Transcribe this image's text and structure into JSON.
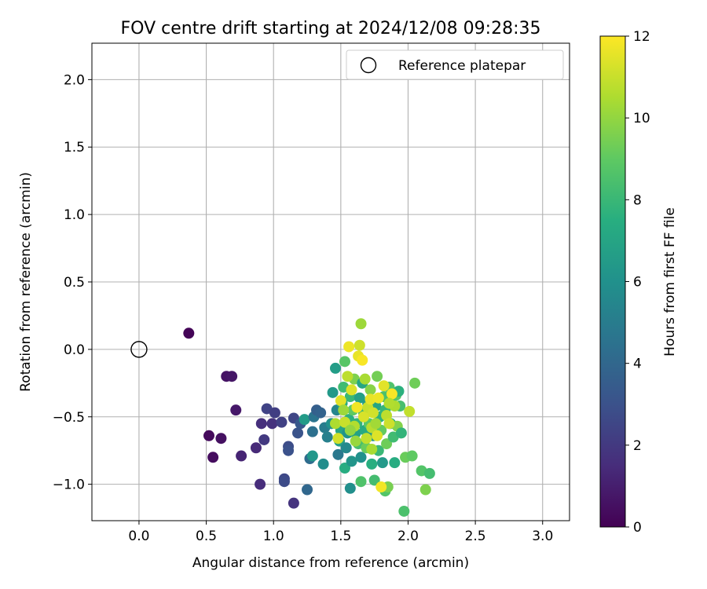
{
  "chart_data": {
    "type": "scatter",
    "title": "FOV centre drift starting at 2024/12/08 09:28:35",
    "xlabel": "Angular distance from reference (arcmin)",
    "ylabel": "Rotation from reference (arcmin)",
    "xlim": [
      -0.35,
      3.2
    ],
    "ylim": [
      -1.27,
      2.27
    ],
    "xticks": [
      0.0,
      0.5,
      1.0,
      1.5,
      2.0,
      2.5,
      3.0
    ],
    "xtick_labels": [
      "0.0",
      "0.5",
      "1.0",
      "1.5",
      "2.0",
      "2.5",
      "3.0"
    ],
    "yticks": [
      -1.0,
      -0.5,
      0.0,
      0.5,
      1.0,
      1.5,
      2.0
    ],
    "ytick_labels": [
      "−1.0",
      "−0.5",
      "0.0",
      "0.5",
      "1.0",
      "1.5",
      "2.0"
    ],
    "grid": true,
    "legend": {
      "position": "top-right",
      "entries": [
        "Reference platepar"
      ]
    },
    "reference_point": {
      "x": 0.0,
      "y": 0.0
    },
    "colorbar": {
      "label": "Hours from first FF file",
      "min": 0,
      "max": 12,
      "ticks": [
        0,
        2,
        4,
        6,
        8,
        10,
        12
      ],
      "tick_labels": [
        "0",
        "2",
        "4",
        "6",
        "8",
        "10",
        "12"
      ],
      "colormap": "viridis"
    },
    "points": [
      {
        "x": 0.37,
        "y": 0.12,
        "h": 0.1
      },
      {
        "x": 0.52,
        "y": -0.64,
        "h": 0.3
      },
      {
        "x": 0.55,
        "y": -0.8,
        "h": 0.4
      },
      {
        "x": 0.61,
        "y": -0.66,
        "h": 0.5
      },
      {
        "x": 0.65,
        "y": -0.2,
        "h": 0.6
      },
      {
        "x": 0.69,
        "y": -0.2,
        "h": 0.7
      },
      {
        "x": 0.72,
        "y": -0.45,
        "h": 0.8
      },
      {
        "x": 0.76,
        "y": -0.79,
        "h": 1.2
      },
      {
        "x": 0.87,
        "y": -0.73,
        "h": 1.4
      },
      {
        "x": 0.9,
        "y": -1.0,
        "h": 1.5
      },
      {
        "x": 0.91,
        "y": -0.55,
        "h": 1.6
      },
      {
        "x": 0.93,
        "y": -0.67,
        "h": 2.0
      },
      {
        "x": 0.95,
        "y": -0.44,
        "h": 2.4
      },
      {
        "x": 0.99,
        "y": -0.55,
        "h": 1.7
      },
      {
        "x": 1.01,
        "y": -0.47,
        "h": 2.2
      },
      {
        "x": 1.06,
        "y": -0.54,
        "h": 2.3
      },
      {
        "x": 1.08,
        "y": -0.96,
        "h": 2.6
      },
      {
        "x": 1.08,
        "y": -0.98,
        "h": 2.7
      },
      {
        "x": 1.11,
        "y": -0.72,
        "h": 2.8
      },
      {
        "x": 1.11,
        "y": -0.75,
        "h": 3.0
      },
      {
        "x": 1.15,
        "y": -1.14,
        "h": 1.8
      },
      {
        "x": 1.15,
        "y": -0.51,
        "h": 2.5
      },
      {
        "x": 1.18,
        "y": -0.62,
        "h": 3.1
      },
      {
        "x": 1.2,
        "y": -0.55,
        "h": 3.3
      },
      {
        "x": 1.23,
        "y": -0.52,
        "h": 6.5
      },
      {
        "x": 1.25,
        "y": -1.04,
        "h": 4.0
      },
      {
        "x": 1.27,
        "y": -0.81,
        "h": 4.2
      },
      {
        "x": 1.29,
        "y": -0.79,
        "h": 6.3
      },
      {
        "x": 1.29,
        "y": -0.61,
        "h": 4.4
      },
      {
        "x": 1.3,
        "y": -0.5,
        "h": 4.6
      },
      {
        "x": 1.32,
        "y": -0.45,
        "h": 3.6
      },
      {
        "x": 1.35,
        "y": -0.47,
        "h": 3.8
      },
      {
        "x": 1.37,
        "y": -0.85,
        "h": 5.8
      },
      {
        "x": 1.38,
        "y": -0.58,
        "h": 5.0
      },
      {
        "x": 1.4,
        "y": -0.65,
        "h": 5.2
      },
      {
        "x": 1.43,
        "y": -0.55,
        "h": 6.0
      },
      {
        "x": 1.44,
        "y": -0.32,
        "h": 6.4
      },
      {
        "x": 1.46,
        "y": -0.14,
        "h": 6.6
      },
      {
        "x": 1.47,
        "y": -0.45,
        "h": 5.4
      },
      {
        "x": 1.48,
        "y": -0.78,
        "h": 4.8
      },
      {
        "x": 1.49,
        "y": -0.68,
        "h": 6.8
      },
      {
        "x": 1.5,
        "y": -0.6,
        "h": 7.0
      },
      {
        "x": 1.51,
        "y": -0.4,
        "h": 7.2
      },
      {
        "x": 1.52,
        "y": -0.28,
        "h": 8.2
      },
      {
        "x": 1.53,
        "y": -0.09,
        "h": 8.8
      },
      {
        "x": 1.53,
        "y": -0.88,
        "h": 7.4
      },
      {
        "x": 1.54,
        "y": -0.73,
        "h": 5.6
      },
      {
        "x": 1.55,
        "y": -0.62,
        "h": 6.1
      },
      {
        "x": 1.56,
        "y": -0.52,
        "h": 7.6
      },
      {
        "x": 1.57,
        "y": -0.35,
        "h": 8.0
      },
      {
        "x": 1.57,
        "y": -1.03,
        "h": 5.9
      },
      {
        "x": 1.58,
        "y": -0.83,
        "h": 6.2
      },
      {
        "x": 1.59,
        "y": -0.45,
        "h": 9.0
      },
      {
        "x": 1.6,
        "y": -0.22,
        "h": 9.6
      },
      {
        "x": 1.61,
        "y": -0.62,
        "h": 6.9
      },
      {
        "x": 1.62,
        "y": -0.55,
        "h": 7.8
      },
      {
        "x": 1.63,
        "y": -0.7,
        "h": 8.4
      },
      {
        "x": 1.64,
        "y": -0.36,
        "h": 6.7
      },
      {
        "x": 1.65,
        "y": -0.98,
        "h": 8.6
      },
      {
        "x": 1.65,
        "y": -0.8,
        "h": 6.0
      },
      {
        "x": 1.66,
        "y": -0.25,
        "h": 7.1
      },
      {
        "x": 1.67,
        "y": -0.47,
        "h": 8.1
      },
      {
        "x": 1.68,
        "y": -0.6,
        "h": 7.3
      },
      {
        "x": 1.69,
        "y": -0.73,
        "h": 9.2
      },
      {
        "x": 1.7,
        "y": -0.4,
        "h": 6.5
      },
      {
        "x": 1.71,
        "y": -0.55,
        "h": 8.9
      },
      {
        "x": 1.72,
        "y": -0.3,
        "h": 9.8
      },
      {
        "x": 1.73,
        "y": -0.85,
        "h": 7.5
      },
      {
        "x": 1.74,
        "y": -0.64,
        "h": 6.3
      },
      {
        "x": 1.75,
        "y": -0.97,
        "h": 8.3
      },
      {
        "x": 1.76,
        "y": -0.42,
        "h": 7.0
      },
      {
        "x": 1.77,
        "y": -0.2,
        "h": 9.4
      },
      {
        "x": 1.78,
        "y": -0.75,
        "h": 8.0
      },
      {
        "x": 1.79,
        "y": -0.5,
        "h": 7.7
      },
      {
        "x": 1.8,
        "y": -0.6,
        "h": 9.1
      },
      {
        "x": 1.81,
        "y": -0.84,
        "h": 6.4
      },
      {
        "x": 1.82,
        "y": -0.35,
        "h": 8.5
      },
      {
        "x": 1.83,
        "y": -1.05,
        "h": 8.7
      },
      {
        "x": 1.83,
        "y": -0.45,
        "h": 7.9
      },
      {
        "x": 1.84,
        "y": -0.7,
        "h": 9.3
      },
      {
        "x": 1.85,
        "y": -1.02,
        "h": 9.5
      },
      {
        "x": 1.86,
        "y": -0.28,
        "h": 8.6
      },
      {
        "x": 1.87,
        "y": -0.55,
        "h": 7.2
      },
      {
        "x": 1.88,
        "y": -0.4,
        "h": 9.0
      },
      {
        "x": 1.89,
        "y": -0.65,
        "h": 8.2
      },
      {
        "x": 1.9,
        "y": -0.84,
        "h": 7.4
      },
      {
        "x": 1.91,
        "y": -0.34,
        "h": 8.8
      },
      {
        "x": 1.92,
        "y": -0.57,
        "h": 9.7
      },
      {
        "x": 1.93,
        "y": -0.31,
        "h": 7.6
      },
      {
        "x": 1.94,
        "y": -0.42,
        "h": 8.4
      },
      {
        "x": 1.95,
        "y": -0.62,
        "h": 7.8
      },
      {
        "x": 1.97,
        "y": -1.2,
        "h": 8.5
      },
      {
        "x": 1.98,
        "y": -0.8,
        "h": 9.2
      },
      {
        "x": 2.01,
        "y": -0.46,
        "h": 10.9
      },
      {
        "x": 2.03,
        "y": -0.79,
        "h": 9.0
      },
      {
        "x": 2.05,
        "y": -0.25,
        "h": 9.3
      },
      {
        "x": 2.1,
        "y": -0.9,
        "h": 8.7
      },
      {
        "x": 2.13,
        "y": -1.04,
        "h": 9.6
      },
      {
        "x": 2.16,
        "y": -0.92,
        "h": 8.3
      },
      {
        "x": 1.46,
        "y": -0.55,
        "h": 10.5
      },
      {
        "x": 1.48,
        "y": -0.66,
        "h": 11.2
      },
      {
        "x": 1.5,
        "y": -0.38,
        "h": 11.5
      },
      {
        "x": 1.53,
        "y": -0.54,
        "h": 11.0
      },
      {
        "x": 1.55,
        "y": -0.2,
        "h": 10.8
      },
      {
        "x": 1.56,
        "y": 0.02,
        "h": 11.7
      },
      {
        "x": 1.58,
        "y": -0.3,
        "h": 11.4
      },
      {
        "x": 1.6,
        "y": -0.57,
        "h": 10.6
      },
      {
        "x": 1.62,
        "y": -0.43,
        "h": 11.8
      },
      {
        "x": 1.63,
        "y": -0.05,
        "h": 11.6
      },
      {
        "x": 1.64,
        "y": 0.03,
        "h": 11.1
      },
      {
        "x": 1.65,
        "y": 0.19,
        "h": 10.2
      },
      {
        "x": 1.66,
        "y": -0.08,
        "h": 11.9
      },
      {
        "x": 1.67,
        "y": -0.5,
        "h": 11.3
      },
      {
        "x": 1.68,
        "y": -0.22,
        "h": 10.4
      },
      {
        "x": 1.69,
        "y": -0.66,
        "h": 10.9
      },
      {
        "x": 1.7,
        "y": -0.43,
        "h": 11.0
      },
      {
        "x": 1.72,
        "y": -0.37,
        "h": 11.6
      },
      {
        "x": 1.73,
        "y": -0.58,
        "h": 10.7
      },
      {
        "x": 1.74,
        "y": -0.47,
        "h": 11.2
      },
      {
        "x": 1.76,
        "y": -0.55,
        "h": 10.3
      },
      {
        "x": 1.77,
        "y": -0.64,
        "h": 11.4
      },
      {
        "x": 1.78,
        "y": -0.36,
        "h": 11.7
      },
      {
        "x": 1.8,
        "y": -1.02,
        "h": 11.8
      },
      {
        "x": 1.82,
        "y": -0.27,
        "h": 11.5
      },
      {
        "x": 1.84,
        "y": -0.49,
        "h": 10.8
      },
      {
        "x": 1.86,
        "y": -0.55,
        "h": 11.1
      },
      {
        "x": 1.88,
        "y": -0.33,
        "h": 11.9
      },
      {
        "x": 1.9,
        "y": -0.42,
        "h": 10.5
      },
      {
        "x": 1.61,
        "y": -0.68,
        "h": 10.1
      },
      {
        "x": 1.57,
        "y": -0.6,
        "h": 10.0
      },
      {
        "x": 1.73,
        "y": -0.74,
        "h": 10.4
      },
      {
        "x": 1.52,
        "y": -0.45,
        "h": 10.2
      },
      {
        "x": 1.86,
        "y": -0.4,
        "h": 10.6
      }
    ]
  }
}
